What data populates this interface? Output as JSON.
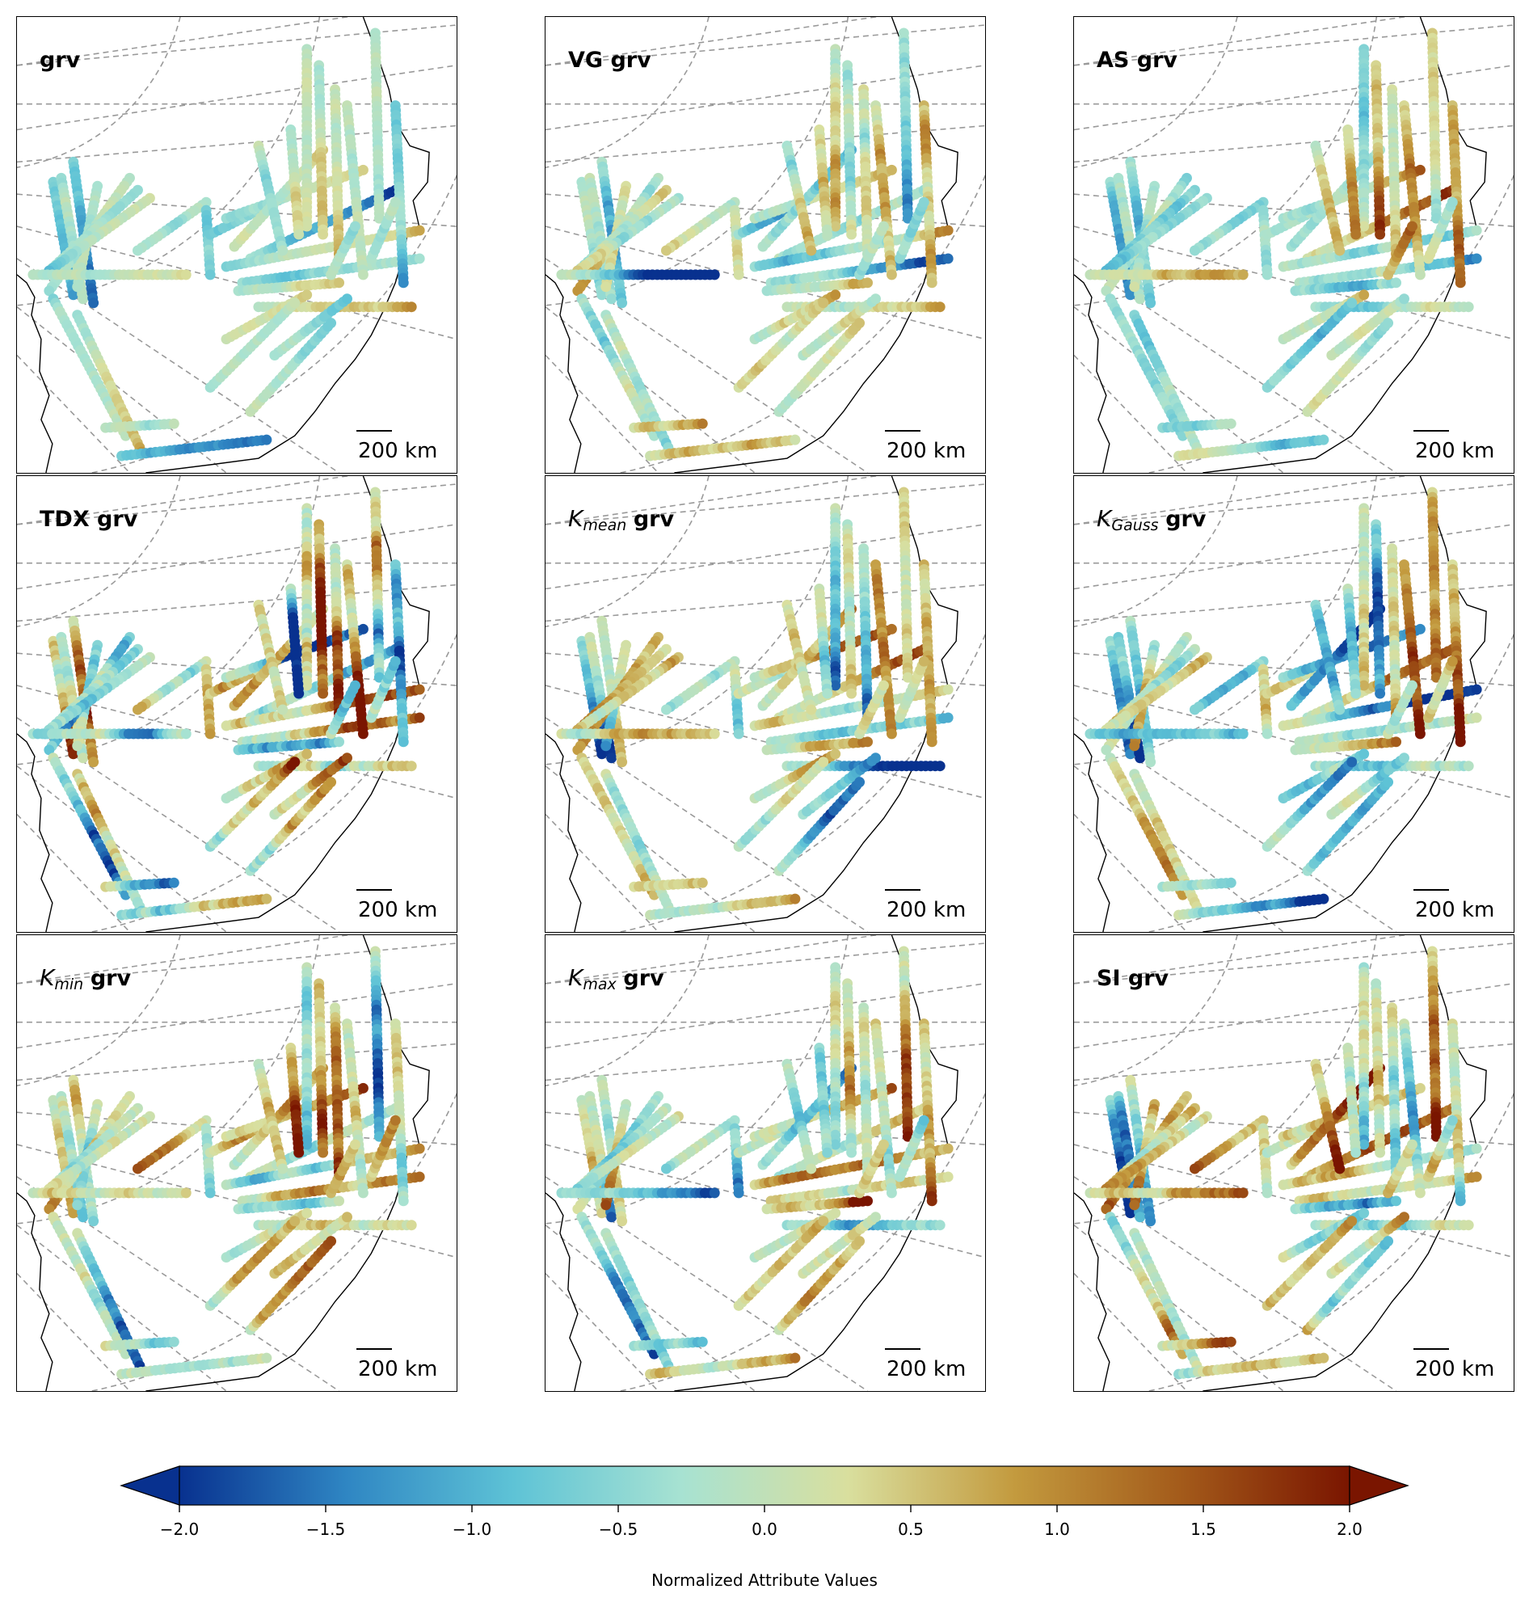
{
  "figure": {
    "scale_bar_label": "200 km",
    "colormap_stops": [
      "#08318f",
      "#2f86c3",
      "#5ec3d6",
      "#a7e2d2",
      "#d9df9e",
      "#c39a3e",
      "#a35a1a",
      "#7a1500"
    ]
  },
  "panels": [
    {
      "symbol": "",
      "subscript": "",
      "name": "grv"
    },
    {
      "symbol": "",
      "subscript": "",
      "name": "VG grv"
    },
    {
      "symbol": "",
      "subscript": "",
      "name": "AS grv"
    },
    {
      "symbol": "",
      "subscript": "",
      "name": "TDX grv"
    },
    {
      "symbol": "K",
      "subscript": "mean",
      "name": "grv"
    },
    {
      "symbol": "K",
      "subscript": "Gauss",
      "name": "grv"
    },
    {
      "symbol": "K",
      "subscript": "min",
      "name": "grv"
    },
    {
      "symbol": "K",
      "subscript": "max",
      "name": "grv"
    },
    {
      "symbol": "",
      "subscript": "",
      "name": "SI grv"
    }
  ],
  "chart_data": {
    "type": "heatmap",
    "title": "",
    "colorbar": {
      "label": "Normalized Attribute Values",
      "min": -2.0,
      "max": 2.0,
      "ticks": [
        -2.0,
        -1.5,
        -1.0,
        -0.5,
        0.0,
        0.5,
        1.0,
        1.5,
        2.0
      ],
      "tick_labels": [
        "−2.0",
        "−1.5",
        "−1.0",
        "−0.5",
        "0.0",
        "0.5",
        "1.0",
        "1.5",
        "2.0"
      ],
      "extend": "both"
    },
    "panels": [
      "grv",
      "VG grv",
      "AS grv",
      "TDX grv",
      "K_mean grv",
      "K_Gauss grv",
      "K_min grv",
      "K_max grv",
      "SI grv"
    ]
  }
}
